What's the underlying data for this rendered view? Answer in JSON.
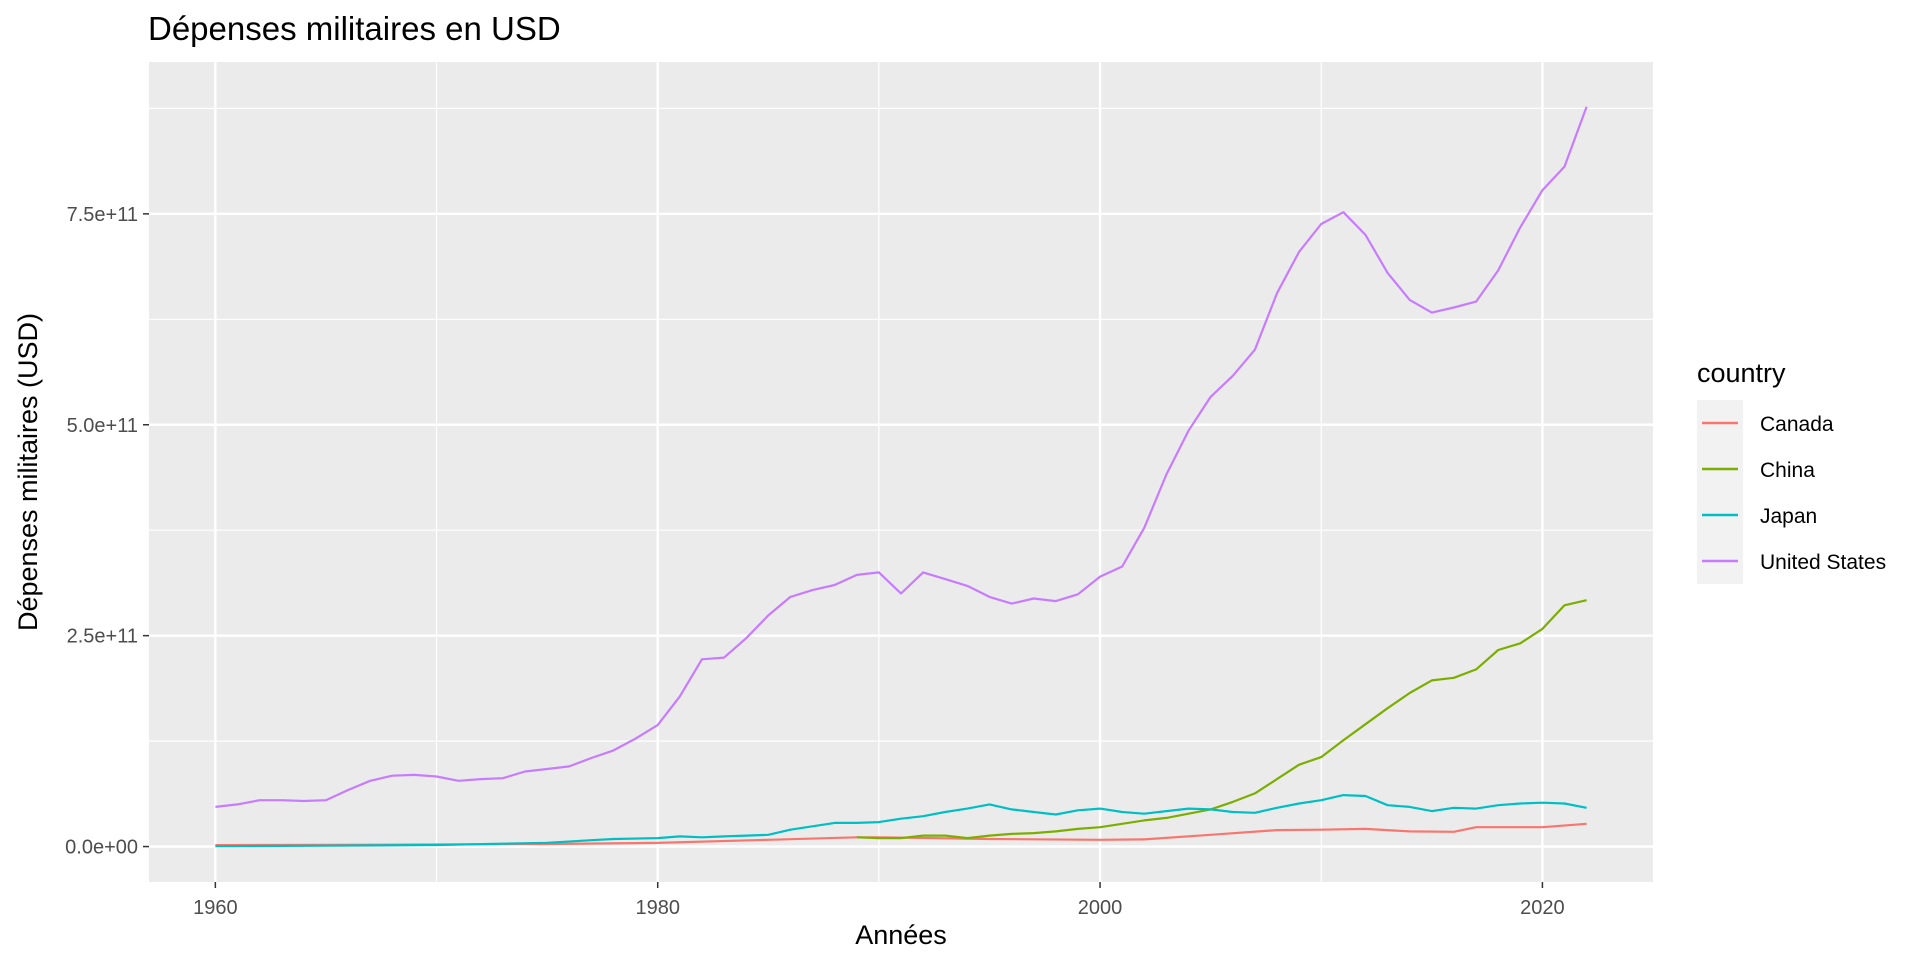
{
  "chart_data": {
    "type": "line",
    "title": "Dépenses militaires en USD",
    "xlabel": "Années",
    "ylabel": "Dépenses militaires (USD)",
    "xlim": [
      1957,
      2025
    ],
    "ylim": [
      -42000000000.0,
      930000000000.0
    ],
    "x_ticks": [
      1960,
      1980,
      2000,
      2020
    ],
    "x_tick_labels": [
      "1960",
      "1980",
      "2000",
      "2020"
    ],
    "y_ticks": [
      0,
      250000000000.0,
      500000000000.0,
      750000000000.0
    ],
    "y_tick_labels": [
      "0.0e+00",
      "2.5e+11",
      "5.0e+11",
      "7.5e+11"
    ],
    "grid": true,
    "legend_title": "country",
    "legend_position": "right",
    "series": [
      {
        "name": "Canada",
        "color": "#F8766D",
        "x": [
          1960,
          1965,
          1970,
          1975,
          1980,
          1985,
          1989,
          1990,
          1995,
          2000,
          2002,
          2005,
          2008,
          2010,
          2012,
          2014,
          2016,
          2017,
          2020,
          2022
        ],
        "y": [
          1700000000.0,
          2000000000.0,
          2400000000.0,
          3000000000.0,
          4400000000.0,
          8000000000.0,
          11000000000.0,
          11000000000.0,
          9000000000.0,
          8000000000.0,
          8500000000.0,
          14000000000.0,
          19500000000.0,
          20000000000.0,
          21000000000.0,
          18000000000.0,
          17500000000.0,
          23000000000.0,
          23000000000.0,
          27000000000.0
        ]
      },
      {
        "name": "China",
        "color": "#7CAE00",
        "x": [
          1989,
          1990,
          1991,
          1992,
          1993,
          1994,
          1995,
          1996,
          1997,
          1998,
          1999,
          2000,
          2001,
          2002,
          2003,
          2004,
          2005,
          2006,
          2007,
          2008,
          2009,
          2010,
          2011,
          2012,
          2013,
          2014,
          2015,
          2016,
          2017,
          2018,
          2019,
          2020,
          2021,
          2022
        ],
        "y": [
          11000000000.0,
          10000000000.0,
          10000000000.0,
          13000000000.0,
          13000000000.0,
          10000000000.0,
          13000000000.0,
          15000000000.0,
          16000000000.0,
          18000000000.0,
          21000000000.0,
          23000000000.0,
          27000000000.0,
          31000000000.0,
          34000000000.0,
          39000000000.0,
          44000000000.0,
          53000000000.0,
          63000000000.0,
          80000000000.0,
          97000000000.0,
          106000000000.0,
          126000000000.0,
          145000000000.0,
          164000000000.0,
          182000000000.0,
          197000000000.0,
          200000000000.0,
          210000000000.0,
          233000000000.0,
          241000000000.0,
          258000000000.0,
          286000000000.0,
          292000000000.0
        ]
      },
      {
        "name": "Japan",
        "color": "#00BFC4",
        "x": [
          1960,
          1965,
          1970,
          1975,
          1977,
          1978,
          1980,
          1981,
          1982,
          1983,
          1984,
          1985,
          1986,
          1987,
          1988,
          1989,
          1990,
          1991,
          1992,
          1993,
          1994,
          1995,
          1996,
          1997,
          1998,
          1999,
          2000,
          2001,
          2002,
          2003,
          2004,
          2005,
          2006,
          2007,
          2008,
          2009,
          2010,
          2011,
          2012,
          2013,
          2014,
          2015,
          2016,
          2017,
          2018,
          2019,
          2020,
          2021,
          2022
        ],
        "y": [
          400000000.0,
          1000000000.0,
          1800000000.0,
          4500000000.0,
          7500000000.0,
          9000000000.0,
          10000000000.0,
          12000000000.0,
          11000000000.0,
          12000000000.0,
          13000000000.0,
          14000000000.0,
          20000000000.0,
          24000000000.0,
          28000000000.0,
          28000000000.0,
          29000000000.0,
          33000000000.0,
          36000000000.0,
          41000000000.0,
          45000000000.0,
          50000000000.0,
          44000000000.0,
          41000000000.0,
          38000000000.0,
          43000000000.0,
          45000000000.0,
          41000000000.0,
          39000000000.0,
          42000000000.0,
          45000000000.0,
          44000000000.0,
          41000000000.0,
          40000000000.0,
          46000000000.0,
          51000000000.0,
          55000000000.0,
          61000000000.0,
          60000000000.0,
          49000000000.0,
          47000000000.0,
          42000000000.0,
          46000000000.0,
          45000000000.0,
          49000000000.0,
          51000000000.0,
          52000000000.0,
          51000000000.0,
          46000000000.0
        ]
      },
      {
        "name": "United States",
        "color": "#C77CFF",
        "x": [
          1960,
          1961,
          1962,
          1963,
          1964,
          1965,
          1966,
          1967,
          1968,
          1969,
          1970,
          1971,
          1972,
          1973,
          1974,
          1975,
          1976,
          1977,
          1978,
          1979,
          1980,
          1981,
          1982,
          1983,
          1984,
          1985,
          1986,
          1987,
          1988,
          1989,
          1990,
          1991,
          1992,
          1993,
          1994,
          1995,
          1996,
          1997,
          1998,
          1999,
          2000,
          2001,
          2002,
          2003,
          2004,
          2005,
          2006,
          2007,
          2008,
          2009,
          2010,
          2011,
          2012,
          2013,
          2014,
          2015,
          2016,
          2017,
          2018,
          2019,
          2020,
          2021,
          2022
        ],
        "y": [
          47000000000.0,
          50000000000.0,
          55000000000.0,
          55000000000.0,
          54000000000.0,
          55000000000.0,
          67000000000.0,
          78000000000.0,
          84000000000.0,
          85000000000.0,
          83000000000.0,
          78000000000.0,
          80000000000.0,
          81000000000.0,
          89000000000.0,
          92000000000.0,
          95000000000.0,
          105000000000.0,
          114000000000.0,
          128000000000.0,
          144000000000.0,
          178000000000.0,
          222000000000.0,
          224000000000.0,
          247000000000.0,
          274000000000.0,
          296000000000.0,
          304000000000.0,
          310000000000.0,
          322000000000.0,
          325000000000.0,
          300000000000.0,
          325000000000.0,
          317000000000.0,
          309000000000.0,
          296000000000.0,
          288000000000.0,
          294000000000.0,
          291000000000.0,
          299000000000.0,
          320000000000.0,
          332000000000.0,
          378000000000.0,
          441000000000.0,
          493000000000.0,
          533000000000.0,
          558000000000.0,
          589000000000.0,
          656000000000.0,
          705000000000.0,
          738000000000.0,
          752000000000.0,
          725000000000.0,
          680000000000.0,
          648000000000.0,
          633000000000.0,
          639000000000.0,
          646000000000.0,
          683000000000.0,
          734000000000.0,
          778000000000.0,
          806000000000.0,
          877000000000.0
        ]
      }
    ]
  }
}
